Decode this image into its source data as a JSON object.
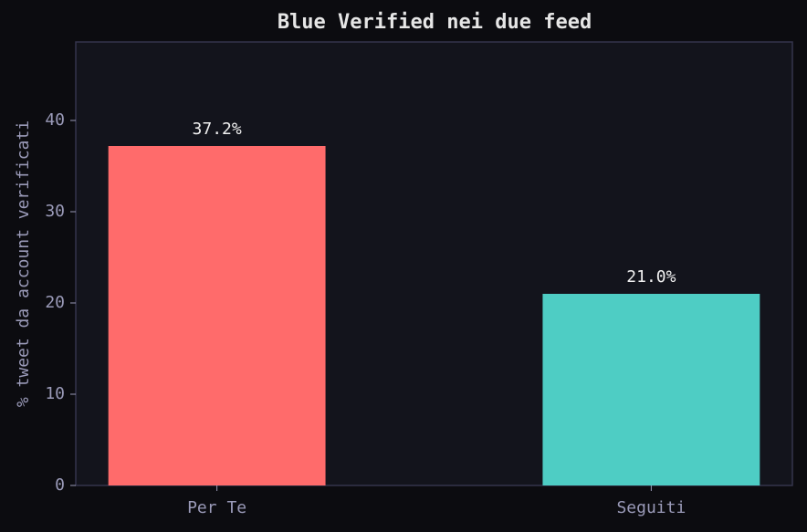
{
  "chart_data": {
    "type": "bar",
    "title": "Blue Verified nei due feed",
    "y_label": "% tweet da account verificati",
    "categories": [
      "Per Te",
      "Seguiti"
    ],
    "values": [
      37.2,
      21.0
    ],
    "value_labels": [
      "37.2%",
      "21.0%"
    ],
    "colors": [
      "#ff6b6b",
      "#4ecdc4"
    ],
    "ylim": [
      0,
      48.6
    ],
    "yticks": [
      0,
      10,
      20,
      30,
      40
    ],
    "grid": false
  }
}
